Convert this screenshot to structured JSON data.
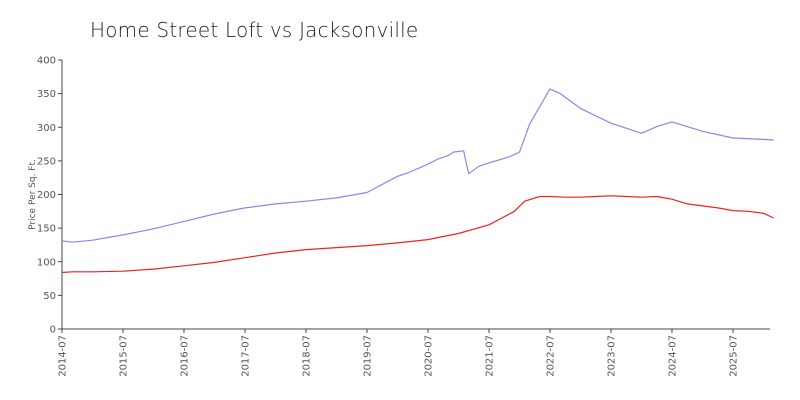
{
  "chart_data": {
    "type": "line",
    "title": "Home Street Loft vs Jacksonville",
    "xlabel": "",
    "ylabel": "Price Per Sq. Ft.",
    "ylim": [
      0,
      400
    ],
    "yticks": [
      0,
      50,
      100,
      150,
      200,
      250,
      300,
      350,
      400
    ],
    "xticks": [
      "2014-07",
      "2015-07",
      "2016-07",
      "2017-07",
      "2018-07",
      "2019-07",
      "2020-07",
      "2021-07",
      "2022-07",
      "2023-07",
      "2024-07",
      "2025-07"
    ],
    "grid": false,
    "legend": "none",
    "series": [
      {
        "color": "#8888ee",
        "x": [
          "2014-07",
          "2014-09",
          "2015-01",
          "2015-07",
          "2016-01",
          "2016-07",
          "2017-01",
          "2017-07",
          "2018-01",
          "2018-07",
          "2019-01",
          "2019-07",
          "2019-10",
          "2020-01",
          "2020-03",
          "2020-07",
          "2020-09",
          "2020-11",
          "2020-12",
          "2021-02",
          "2021-03",
          "2021-05",
          "2021-07",
          "2021-11",
          "2022-01",
          "2022-03",
          "2022-07",
          "2022-09",
          "2023-01",
          "2023-07",
          "2024-01",
          "2024-04",
          "2024-07",
          "2025-01",
          "2025-07",
          "2026-01",
          "2026-03"
        ],
        "values": [
          131,
          129,
          132,
          140,
          149,
          160,
          171,
          180,
          186,
          190,
          195,
          203,
          215,
          227,
          232,
          245,
          253,
          258,
          263,
          265,
          231,
          242,
          247,
          256,
          263,
          305,
          357,
          350,
          328,
          306,
          291,
          301,
          308,
          294,
          284,
          282,
          281
        ]
      },
      {
        "color": "#ee2222",
        "x": [
          "2014-07",
          "2014-09",
          "2015-01",
          "2015-07",
          "2016-01",
          "2016-07",
          "2017-01",
          "2017-07",
          "2018-01",
          "2018-07",
          "2019-01",
          "2019-07",
          "2020-01",
          "2020-07",
          "2020-09",
          "2021-01",
          "2021-07",
          "2021-09",
          "2021-12",
          "2022-02",
          "2022-05",
          "2022-07",
          "2022-10",
          "2023-01",
          "2023-04",
          "2023-07",
          "2023-10",
          "2024-01",
          "2024-04",
          "2024-07",
          "2024-10",
          "2025-01",
          "2025-04",
          "2025-07",
          "2025-10",
          "2026-01",
          "2026-03"
        ],
        "values": [
          84,
          85,
          85,
          86,
          89,
          94,
          99,
          106,
          113,
          118,
          121,
          124,
          128,
          133,
          136,
          142,
          155,
          163,
          175,
          190,
          197,
          197,
          196,
          196,
          197,
          198,
          197,
          196,
          197,
          193,
          186,
          183,
          180,
          176,
          175,
          172,
          165
        ]
      }
    ]
  }
}
